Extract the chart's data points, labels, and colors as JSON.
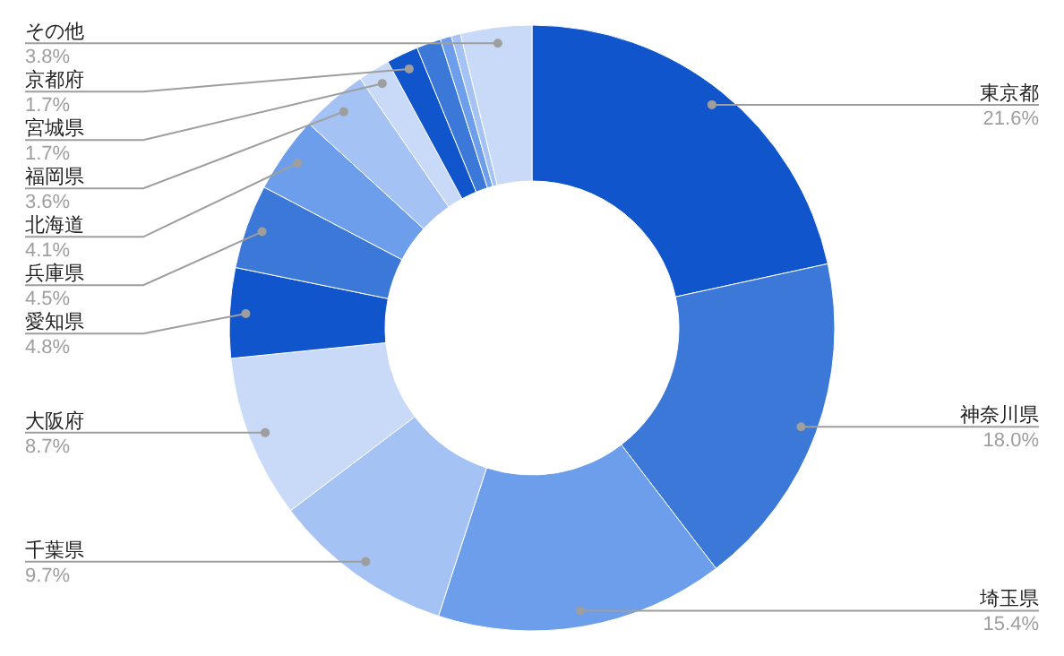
{
  "chart_data": {
    "type": "donut",
    "categories": [
      "東京都",
      "神奈川県",
      "埼玉県",
      "千葉県",
      "大阪府",
      "愛知県",
      "兵庫県",
      "北海道",
      "福岡県",
      "宮城県",
      "京都府",
      null,
      null,
      null,
      "その他"
    ],
    "values": [
      21.6,
      18.0,
      15.4,
      9.7,
      8.7,
      4.8,
      4.5,
      4.1,
      3.6,
      1.7,
      1.7,
      1.3,
      0.6,
      0.5,
      3.8
    ],
    "value_labels": [
      "21.6%",
      "18.0%",
      "15.4%",
      "9.7%",
      "8.7%",
      "4.8%",
      "4.5%",
      "4.1%",
      "3.6%",
      "1.7%",
      "1.7%",
      null,
      null,
      null,
      "3.8%"
    ],
    "colors": [
      "#1155cc",
      "#3c78d8",
      "#6d9eeb",
      "#a4c2f4",
      "#c9daf8",
      "#1155cc",
      "#3c78d8",
      "#6d9eeb",
      "#a4c2f4",
      "#c9daf8",
      "#1155cc",
      "#3c78d8",
      "#6d9eeb",
      "#a4c2f4",
      "#c9daf8"
    ]
  }
}
